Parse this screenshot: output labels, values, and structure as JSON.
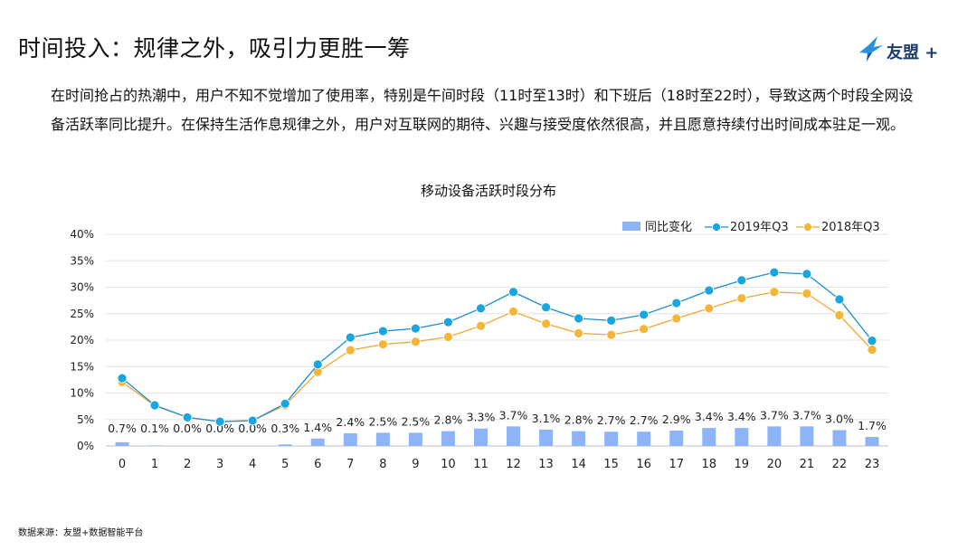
{
  "header": {
    "title": "时间投入：规律之外，吸引力更胜一筹",
    "logo_text": "友盟 +"
  },
  "description": "在时间抢占的热潮中，用户不知不觉增加了使用率，特别是午间时段（11时至13时）和下班后（18时至22时），导致这两个时段全网设备活跃率同比提升。在保持生活作息规律之外，用户对互联网的期待、兴趣与接受度依然很高，并且愿意持续付出时间成本驻足一观。",
  "footer": {
    "source": "数据来源：友盟+数据智能平台"
  },
  "colors": {
    "bar": "#8db4f7",
    "line_2019": "#1a8ed6",
    "marker_2019": "#17a6df",
    "line_2018": "#f0a830",
    "marker_2018": "#f5b536",
    "grid": "#e4e4e4"
  },
  "chart_data": {
    "type": "bar+line",
    "title": "移动设备活跃时段分布",
    "categories": [
      "0",
      "1",
      "2",
      "3",
      "4",
      "5",
      "6",
      "7",
      "8",
      "9",
      "10",
      "11",
      "12",
      "13",
      "14",
      "15",
      "16",
      "17",
      "18",
      "19",
      "20",
      "21",
      "22",
      "23"
    ],
    "ylim": [
      0,
      40
    ],
    "yticks": [
      "0%",
      "5%",
      "10%",
      "15%",
      "20%",
      "25%",
      "30%",
      "35%",
      "40%"
    ],
    "legend_position": "top-right",
    "grid": true,
    "series": [
      {
        "name": "同比变化",
        "kind": "bar",
        "values": [
          0.7,
          0.1,
          0.0,
          0.0,
          0.0,
          0.3,
          1.4,
          2.4,
          2.5,
          2.5,
          2.8,
          3.3,
          3.7,
          3.1,
          2.8,
          2.7,
          2.7,
          2.9,
          3.4,
          3.4,
          3.7,
          3.7,
          3.0,
          1.7
        ],
        "labels": [
          "0.7%",
          "0.1%",
          "0.0%",
          "0.0%",
          "0.0%",
          "0.3%",
          "1.4%",
          "2.4%",
          "2.5%",
          "2.5%",
          "2.8%",
          "3.3%",
          "3.7%",
          "3.1%",
          "2.8%",
          "2.7%",
          "2.7%",
          "2.9%",
          "3.4%",
          "3.4%",
          "3.7%",
          "3.7%",
          "3.0%",
          "1.7%"
        ]
      },
      {
        "name": "2019年Q3",
        "kind": "line",
        "values": [
          12.8,
          7.7,
          5.4,
          4.6,
          4.8,
          8.0,
          15.4,
          20.5,
          21.7,
          22.2,
          23.4,
          26.0,
          29.1,
          26.2,
          24.1,
          23.7,
          24.8,
          27.0,
          29.4,
          31.3,
          32.8,
          32.5,
          27.7,
          19.9
        ]
      },
      {
        "name": "2018年Q3",
        "kind": "line",
        "values": [
          12.1,
          7.6,
          5.4,
          4.6,
          4.8,
          7.7,
          14.0,
          18.1,
          19.2,
          19.7,
          20.6,
          22.7,
          25.4,
          23.1,
          21.3,
          21.0,
          22.1,
          24.1,
          26.0,
          27.9,
          29.1,
          28.8,
          24.7,
          18.2
        ]
      }
    ]
  }
}
